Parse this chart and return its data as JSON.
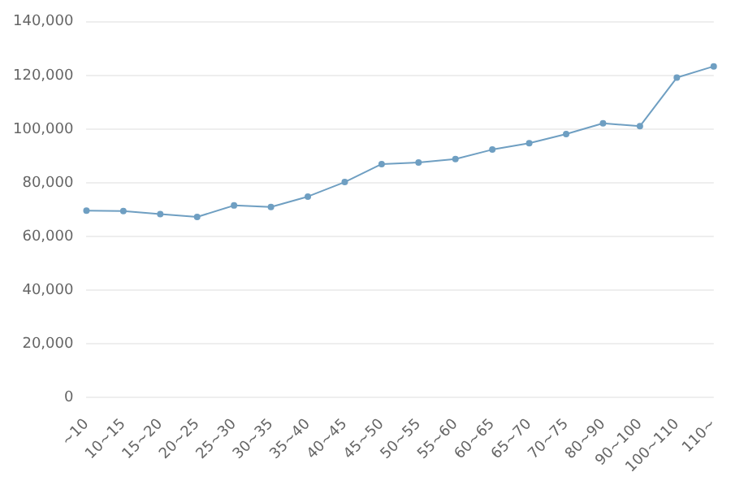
{
  "chart_data": {
    "type": "line",
    "categories": [
      "~10",
      "10~15",
      "15~20",
      "20~25",
      "25~30",
      "30~35",
      "35~40",
      "40~45",
      "45~50",
      "50~55",
      "55~60",
      "60~65",
      "65~70",
      "70~75",
      "80~90",
      "90~100",
      "100~110",
      "110~"
    ],
    "series": [
      {
        "color": "#6f9fc2",
        "values": [
          69700,
          69500,
          68400,
          67300,
          71600,
          71000,
          74900,
          80300,
          87000,
          87600,
          88900,
          92400,
          94800,
          98200,
          102200,
          101100,
          119200,
          123400
        ]
      }
    ],
    "ylim": [
      0,
      140000
    ],
    "yticks": [
      0,
      {
        "value": 20000,
        "label": "20,000"
      },
      {
        "value": 40000,
        "label": "40,000"
      },
      {
        "value": 60000,
        "label": "60,000"
      },
      {
        "value": 80000,
        "label": "80,000"
      },
      {
        "value": 100000,
        "label": "100,000"
      },
      {
        "value": 120000,
        "label": "120,000"
      },
      {
        "value": 140000,
        "label": "140,000"
      }
    ],
    "grid": "y",
    "legend": false,
    "marker": "circle",
    "line_style": "solid"
  }
}
